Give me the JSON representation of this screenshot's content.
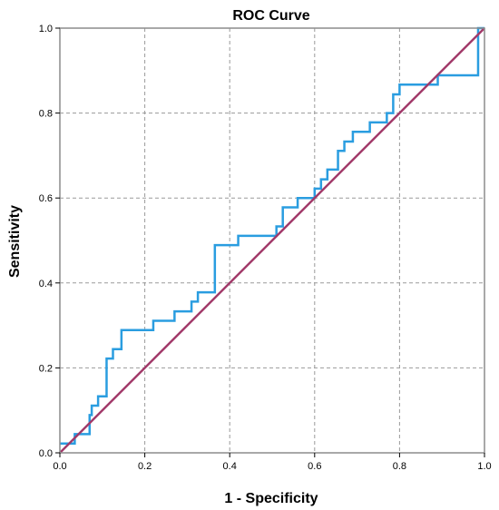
{
  "chart_data": {
    "type": "line",
    "title": "ROC Curve",
    "xlabel": "1 - Specificity",
    "ylabel": "Sensitivity",
    "xlim": [
      0,
      1
    ],
    "ylim": [
      0,
      1
    ],
    "xticks": [
      "0.0",
      "0.2",
      "0.4",
      "0.6",
      "0.8",
      "1.0"
    ],
    "yticks": [
      "0.0",
      "0.2",
      "0.4",
      "0.6",
      "0.8",
      "1.0"
    ],
    "grid": true,
    "colors": {
      "roc": "#2a9de0",
      "reference": "#a23a6a",
      "grid": "#9a9a9a",
      "frame": "#8c8c8c"
    },
    "series": [
      {
        "x": [
          0,
          0.035,
          0.035,
          0.07,
          0.07,
          0.075,
          0.075,
          0.09,
          0.09,
          0.11,
          0.11,
          0.125,
          0.125,
          0.145,
          0.145,
          0.22,
          0.22,
          0.27,
          0.27,
          0.31,
          0.31,
          0.325,
          0.325,
          0.365,
          0.365,
          0.42,
          0.42,
          0.51,
          0.51,
          0.525,
          0.525,
          0.56,
          0.56,
          0.6,
          0.6,
          0.615,
          0.615,
          0.63,
          0.63,
          0.655,
          0.655,
          0.67,
          0.67,
          0.69,
          0.69,
          0.73,
          0.73,
          0.77,
          0.77,
          0.785,
          0.785,
          0.8,
          0.8,
          0.89,
          0.89,
          0.985,
          0.985,
          1.0
        ],
        "y": [
          0.022,
          0.022,
          0.044,
          0.044,
          0.089,
          0.089,
          0.111,
          0.111,
          0.133,
          0.133,
          0.222,
          0.222,
          0.244,
          0.244,
          0.289,
          0.289,
          0.311,
          0.311,
          0.333,
          0.333,
          0.356,
          0.356,
          0.378,
          0.378,
          0.489,
          0.489,
          0.511,
          0.511,
          0.533,
          0.533,
          0.578,
          0.578,
          0.6,
          0.6,
          0.622,
          0.622,
          0.644,
          0.644,
          0.667,
          0.667,
          0.711,
          0.711,
          0.733,
          0.733,
          0.756,
          0.756,
          0.778,
          0.778,
          0.8,
          0.8,
          0.844,
          0.844,
          0.867,
          0.867,
          0.889,
          0.889,
          1.0,
          1.0
        ]
      },
      {
        "x": [
          0,
          1
        ],
        "y": [
          0,
          1
        ]
      }
    ]
  }
}
